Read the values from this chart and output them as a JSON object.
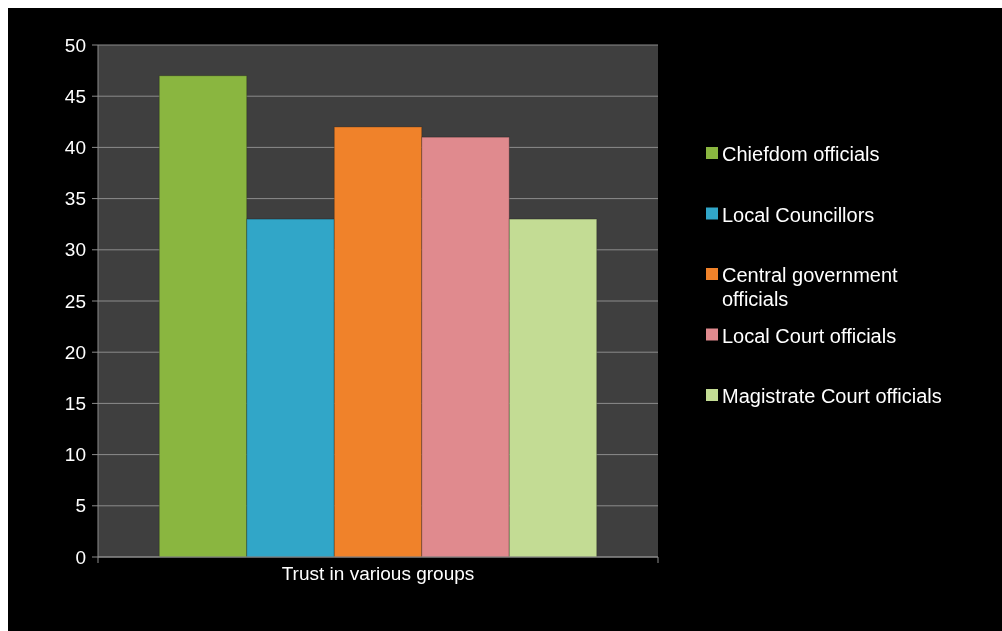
{
  "chart_data": {
    "type": "bar",
    "categories": [
      "Trust in various groups"
    ],
    "series": [
      {
        "name": "Chiefdom officials",
        "color": "#8ab640",
        "values": [
          47
        ]
      },
      {
        "name": "Local Councillors",
        "color": "#31a6c8",
        "values": [
          33
        ]
      },
      {
        "name": "Central government officials",
        "color": "#f0822a",
        "values": [
          42
        ]
      },
      {
        "name": "Local Court officials",
        "color": "#e08a8e",
        "values": [
          41
        ]
      },
      {
        "name": "Magistrate Court officials",
        "color": "#c3dc94",
        "values": [
          33
        ]
      }
    ],
    "ylim": [
      0,
      50
    ],
    "yticks": [
      0,
      5,
      10,
      15,
      20,
      25,
      30,
      35,
      40,
      45,
      50
    ],
    "grid": "y",
    "legend": "right"
  }
}
